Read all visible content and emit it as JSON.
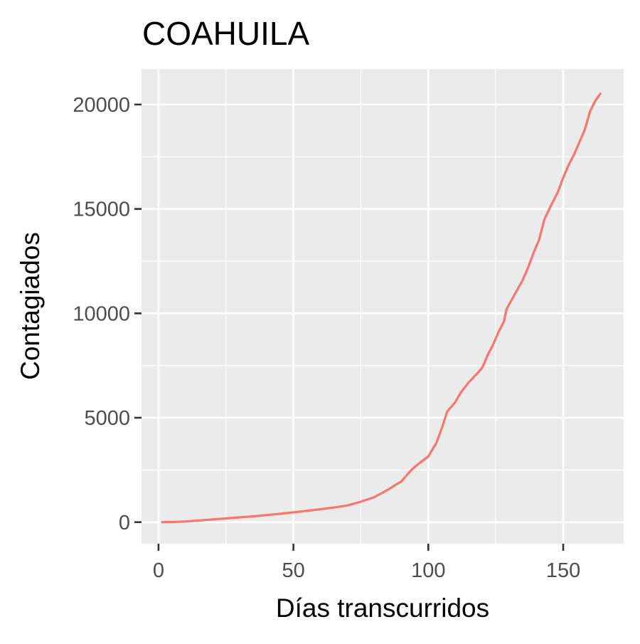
{
  "chart_data": {
    "type": "line",
    "title": "COAHUILA",
    "xlabel": "Días transcurridos",
    "ylabel": "Contagiados",
    "xlim": [
      -6.3,
      172.4
    ],
    "ylim": [
      -1030,
      21700
    ],
    "x_ticks": [
      0,
      50,
      100,
      150
    ],
    "x_tick_labels": [
      "0",
      "50",
      "100",
      "150"
    ],
    "x_minor_ticks": [
      25,
      75,
      125
    ],
    "y_ticks": [
      0,
      5000,
      10000,
      15000,
      20000
    ],
    "y_tick_labels": [
      "0",
      "5000",
      "10000",
      "15000",
      "20000"
    ],
    "y_minor_ticks": [
      2500,
      7500,
      12500,
      17500
    ],
    "grid": true,
    "legend": "none",
    "panel_background": "#EBEBEB",
    "grid_color": "#FFFFFF",
    "line_color": "#F8766D",
    "series": [
      {
        "x": [
          1,
          5,
          10,
          15,
          20,
          25,
          30,
          35,
          40,
          45,
          50,
          55,
          60,
          65,
          70,
          75,
          80,
          85,
          88,
          90,
          93,
          95,
          98,
          100,
          103,
          105,
          107,
          110,
          112,
          115,
          118,
          120,
          122,
          124,
          126,
          128,
          129,
          132,
          135,
          137,
          139,
          141,
          143,
          146,
          148,
          150,
          152,
          154,
          156,
          158,
          160,
          162,
          164
        ],
        "y": [
          0,
          10,
          30,
          80,
          130,
          180,
          230,
          280,
          340,
          400,
          470,
          540,
          620,
          700,
          800,
          980,
          1200,
          1550,
          1800,
          1950,
          2400,
          2650,
          2950,
          3150,
          3800,
          4500,
          5300,
          5750,
          6200,
          6700,
          7100,
          7400,
          8000,
          8500,
          9100,
          9600,
          10200,
          10900,
          11600,
          12200,
          12900,
          13500,
          14500,
          15300,
          15800,
          16500,
          17100,
          17600,
          18200,
          18800,
          19700,
          20200,
          20550
        ]
      }
    ]
  }
}
